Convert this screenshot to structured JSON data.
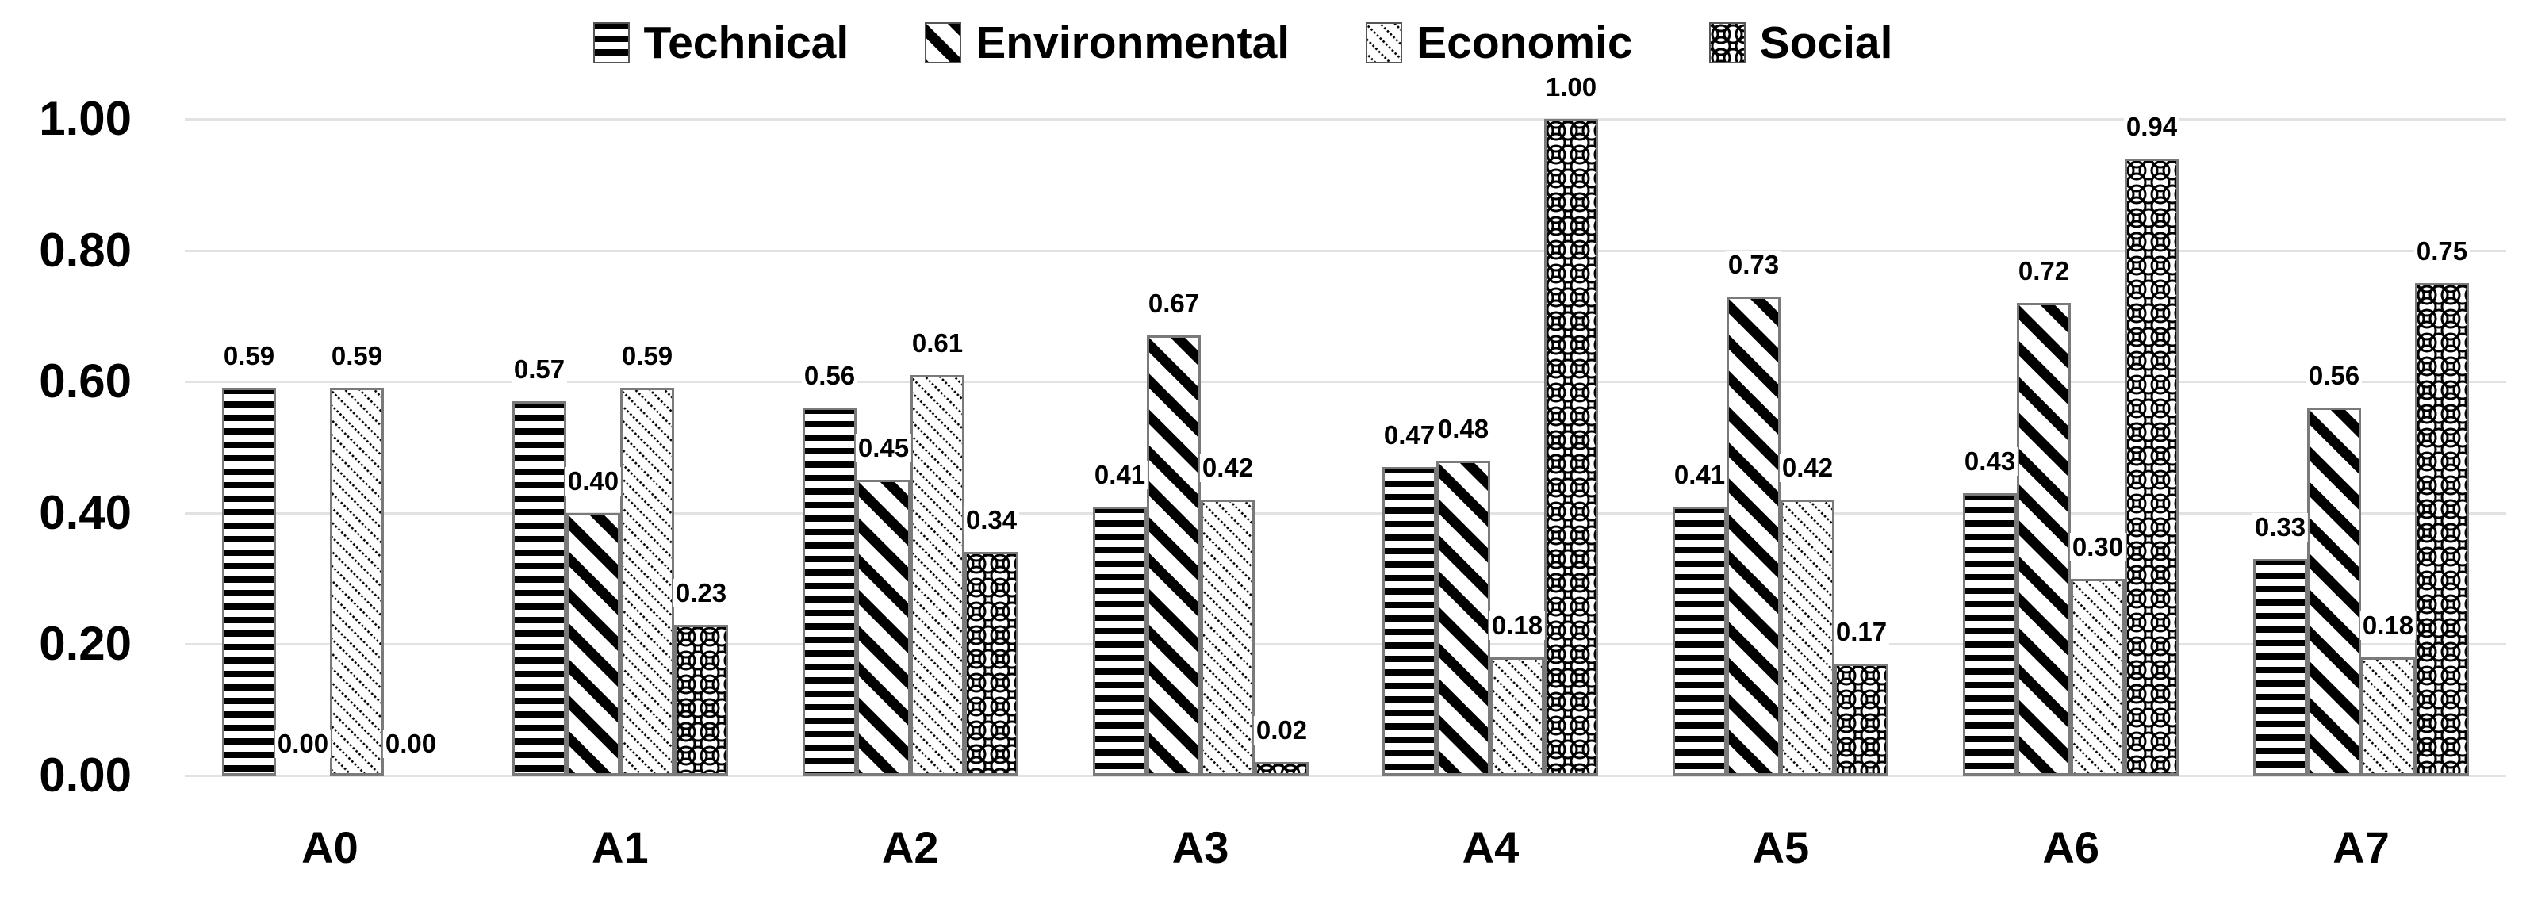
{
  "chart_data": {
    "type": "bar",
    "title": "",
    "categories": [
      "A0",
      "A1",
      "A2",
      "A3",
      "A4",
      "A5",
      "A6",
      "A7"
    ],
    "series": [
      {
        "name": "Technical",
        "pattern": "horizontal-stripes",
        "values": [
          0.59,
          0.57,
          0.56,
          0.41,
          0.47,
          0.41,
          0.43,
          0.33
        ]
      },
      {
        "name": "Environmental",
        "pattern": "thick-diagonal-stripes",
        "values": [
          0.0,
          0.4,
          0.45,
          0.67,
          0.48,
          0.73,
          0.72,
          0.56
        ]
      },
      {
        "name": "Economic",
        "pattern": "dotted-diagonal",
        "values": [
          0.59,
          0.59,
          0.61,
          0.42,
          0.18,
          0.42,
          0.3,
          0.18
        ]
      },
      {
        "name": "Social",
        "pattern": "fish-scale",
        "values": [
          0.0,
          0.23,
          0.34,
          0.02,
          1.0,
          0.17,
          0.94,
          0.75
        ]
      }
    ],
    "ylim": [
      0,
      1
    ],
    "ytick_labels": [
      "1.00",
      "0.80",
      "0.60",
      "0.40",
      "0.20",
      "0.00"
    ],
    "grid": true,
    "legend_position": "top",
    "value_labels_shown": true,
    "value_label_format": "0.00"
  },
  "colors": {
    "background": "#ffffff",
    "text": "#000000",
    "gridline": "#e2e2e2",
    "bar_outline": "#7a7a7a",
    "pattern_foreground": "#000000",
    "pattern_background": "#ffffff"
  }
}
